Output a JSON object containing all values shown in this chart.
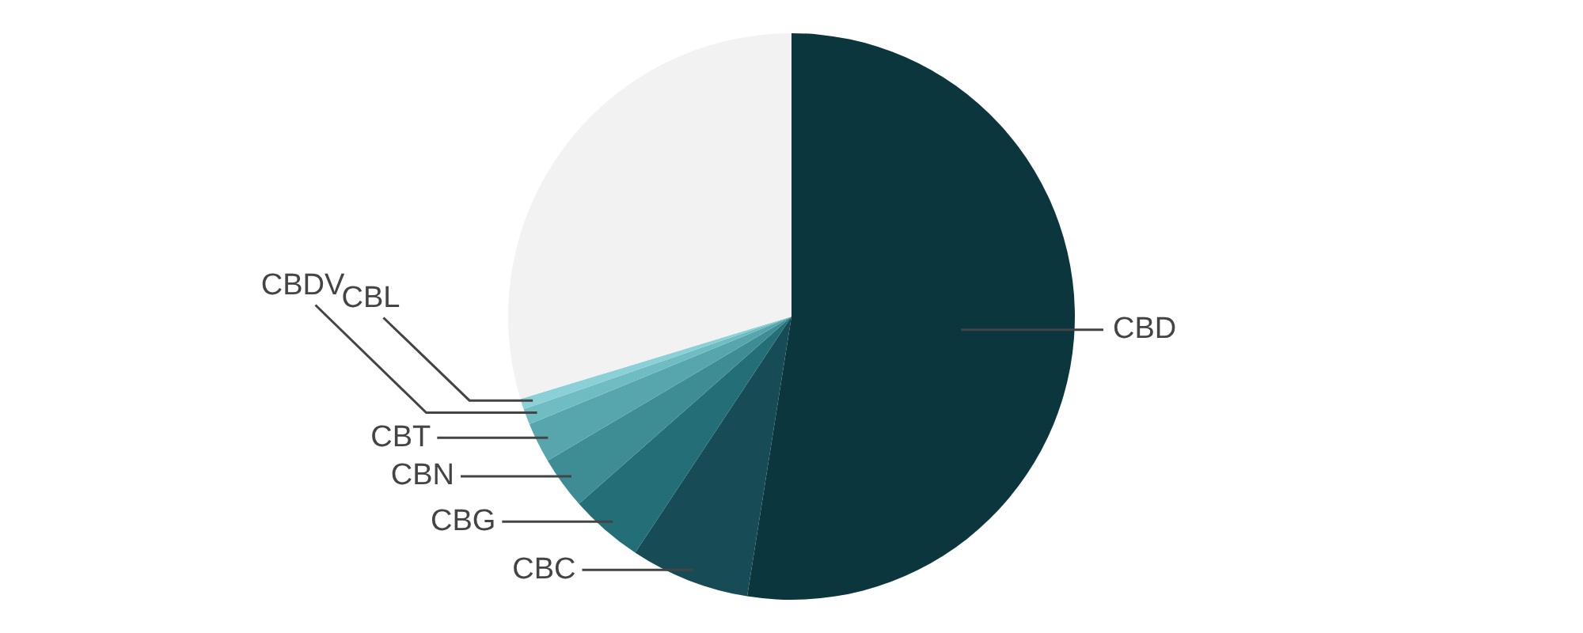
{
  "chart_data": {
    "type": "pie",
    "categories": [
      "CBD",
      "CBC",
      "CBG",
      "CBN",
      "CBT",
      "CBDV",
      "CBL",
      null
    ],
    "values": [
      52.5,
      6.8,
      4.2,
      3,
      2.3,
      0.9,
      0.6,
      29.7
    ],
    "colors": [
      "#0b363d",
      "#174b55",
      "#236e77",
      "#3e8d95",
      "#57a6ad",
      "#6fbcc3",
      "#8ad0d6",
      "#f2f2f2"
    ]
  }
}
